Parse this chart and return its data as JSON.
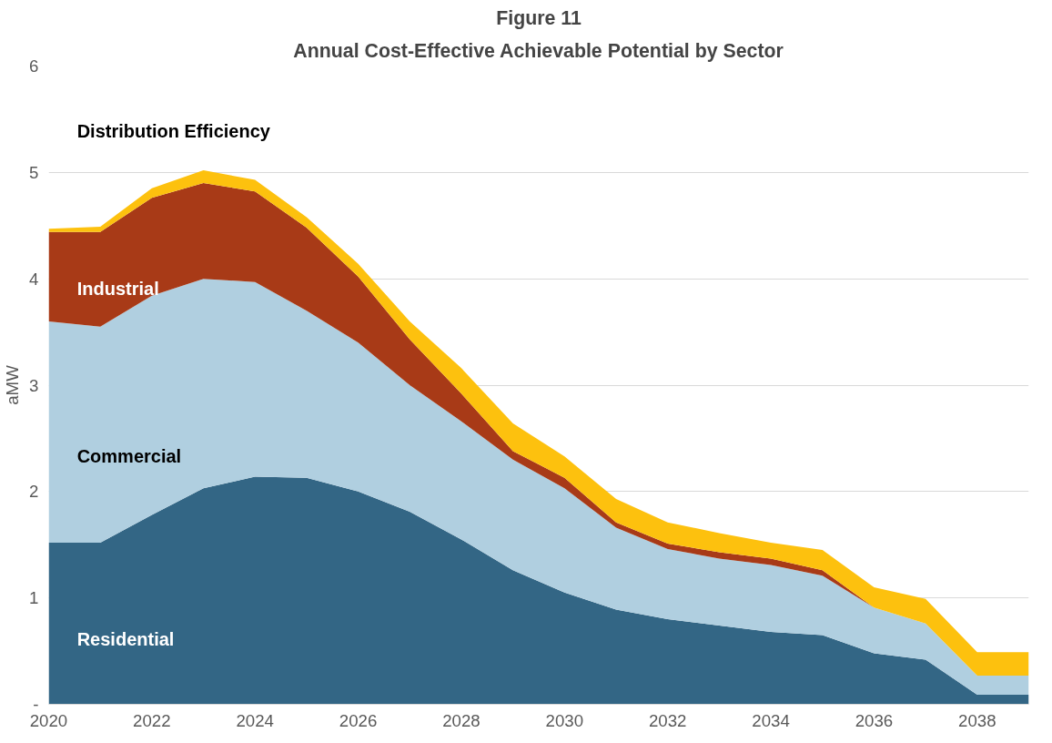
{
  "chart_data": {
    "type": "area",
    "stacked": true,
    "title": "Figure 11",
    "subtitle": "Annual Cost-Effective Achievable Potential by Sector",
    "ylabel": "aMW",
    "x": [
      2020,
      2021,
      2022,
      2023,
      2024,
      2025,
      2026,
      2027,
      2028,
      2029,
      2030,
      2031,
      2032,
      2033,
      2034,
      2035,
      2036,
      2037,
      2038,
      2039
    ],
    "series": [
      {
        "name": "Residential",
        "color": "#336685",
        "values": [
          1.52,
          1.52,
          1.78,
          2.03,
          2.14,
          2.13,
          2.0,
          1.81,
          1.55,
          1.26,
          1.05,
          0.89,
          0.8,
          0.74,
          0.68,
          0.65,
          0.48,
          0.42,
          0.09,
          0.09
        ]
      },
      {
        "name": "Commercial",
        "color": "#b0cfe0",
        "values": [
          2.08,
          2.03,
          2.06,
          1.97,
          1.83,
          1.57,
          1.4,
          1.19,
          1.11,
          1.04,
          0.98,
          0.77,
          0.66,
          0.63,
          0.63,
          0.56,
          0.43,
          0.34,
          0.18,
          0.18
        ]
      },
      {
        "name": "Industrial",
        "color": "#a83a17",
        "values": [
          0.84,
          0.89,
          0.92,
          0.9,
          0.85,
          0.78,
          0.62,
          0.43,
          0.26,
          0.08,
          0.1,
          0.05,
          0.05,
          0.06,
          0.06,
          0.05,
          0,
          0,
          0,
          0
        ]
      },
      {
        "name": "Distribution Efficiency",
        "color": "#fdc10e",
        "values": [
          0.03,
          0.05,
          0.09,
          0.12,
          0.11,
          0.1,
          0.12,
          0.17,
          0.24,
          0.26,
          0.2,
          0.22,
          0.2,
          0.18,
          0.15,
          0.19,
          0.19,
          0.23,
          0.22,
          0.22
        ]
      }
    ],
    "xlim": [
      2020,
      2039
    ],
    "xticks": [
      2020,
      2022,
      2024,
      2026,
      2028,
      2030,
      2032,
      2034,
      2036,
      2038
    ],
    "ylim": [
      0,
      6
    ],
    "yticks": [
      {
        "value": 0,
        "label": "-"
      },
      1,
      2,
      3,
      4,
      5,
      6
    ],
    "grid": "y"
  }
}
